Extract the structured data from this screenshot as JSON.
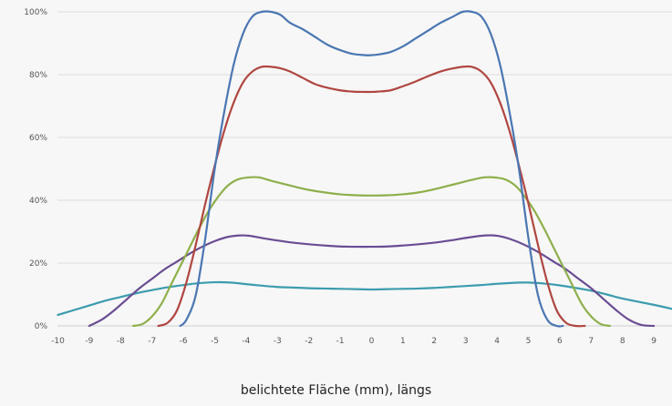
{
  "chart_data": {
    "type": "line",
    "title": "",
    "xlabel": "belichtete Fläche (mm), längs",
    "ylabel": "",
    "xlim": [
      -10,
      9.8
    ],
    "ylim": [
      0,
      100
    ],
    "x_ticks": [
      "-10",
      "-9",
      "-8",
      "-7",
      "-6",
      "-5",
      "-4",
      "-3",
      "-2",
      "-1",
      "0",
      "1",
      "2",
      "3",
      "4",
      "5",
      "6",
      "7",
      "8",
      "9"
    ],
    "y_ticks": [
      "0%",
      "20%",
      "40%",
      "60%",
      "80%",
      "100%"
    ],
    "grid": "horizontal",
    "legend": "none",
    "series": [
      {
        "color": "#4a76b2",
        "x": [
          -6.1,
          -5.9,
          -5.6,
          -5.3,
          -5.0,
          -4.7,
          -4.4,
          -4.1,
          -3.8,
          -3.5,
          -3.2,
          -2.9,
          -2.6,
          -2.2,
          -1.8,
          -1.4,
          -1.0,
          -0.6,
          -0.2,
          0.0,
          0.2,
          0.6,
          1.0,
          1.4,
          1.8,
          2.2,
          2.6,
          2.9,
          3.2,
          3.5,
          3.8,
          4.1,
          4.4,
          4.7,
          5.0,
          5.3,
          5.6,
          5.9,
          6.1
        ],
        "y": [
          0,
          2,
          10,
          28,
          50,
          68,
          83,
          93,
          98.5,
          100,
          100,
          99,
          96.5,
          94.5,
          92,
          89.5,
          87.8,
          86.6,
          86.2,
          86.2,
          86.4,
          87.2,
          89,
          91.5,
          94,
          96.5,
          98.5,
          100,
          100,
          98.5,
          93,
          83,
          68,
          50,
          28,
          10,
          2,
          0,
          0
        ]
      },
      {
        "color": "#b04641",
        "x": [
          -6.8,
          -6.5,
          -6.2,
          -5.9,
          -5.6,
          -5.3,
          -5.0,
          -4.7,
          -4.4,
          -4.1,
          -3.8,
          -3.5,
          -3.2,
          -2.9,
          -2.6,
          -2.2,
          -1.8,
          -1.4,
          -1.0,
          -0.6,
          -0.2,
          0.0,
          0.2,
          0.6,
          1.0,
          1.4,
          1.8,
          2.2,
          2.6,
          2.9,
          3.2,
          3.5,
          3.8,
          4.1,
          4.4,
          4.7,
          5.0,
          5.3,
          5.6,
          5.9,
          6.2,
          6.5,
          6.8
        ],
        "y": [
          0,
          1,
          5,
          14,
          26,
          39,
          51,
          62,
          71,
          77.5,
          81,
          82.5,
          82.5,
          82,
          81,
          79,
          77,
          75.8,
          75,
          74.6,
          74.5,
          74.5,
          74.6,
          75,
          76.3,
          77.8,
          79.5,
          81,
          82,
          82.5,
          82.5,
          81,
          77.5,
          71,
          62,
          51,
          39,
          26,
          14,
          5,
          1,
          0,
          0
        ]
      },
      {
        "color": "#8eaf4c",
        "x": [
          -7.6,
          -7.3,
          -7.0,
          -6.7,
          -6.4,
          -6.1,
          -5.8,
          -5.5,
          -5.2,
          -4.9,
          -4.6,
          -4.3,
          -4.0,
          -3.6,
          -3.2,
          -2.8,
          -2.4,
          -2.0,
          -1.5,
          -1.0,
          -0.5,
          0.0,
          0.5,
          1.0,
          1.5,
          2.0,
          2.4,
          2.8,
          3.2,
          3.6,
          4.0,
          4.3,
          4.6,
          4.9,
          5.2,
          5.5,
          5.8,
          6.1,
          6.4,
          6.7,
          7.0,
          7.3,
          7.6
        ],
        "y": [
          0,
          0.6,
          3,
          7,
          13,
          19,
          25,
          31,
          36.5,
          41,
          44.5,
          46.5,
          47.2,
          47.3,
          46.2,
          45.2,
          44.2,
          43.3,
          42.5,
          41.9,
          41.6,
          41.5,
          41.6,
          41.9,
          42.5,
          43.5,
          44.5,
          45.5,
          46.5,
          47.3,
          47.2,
          46.5,
          44.5,
          41,
          36.5,
          31,
          25,
          19,
          13,
          7,
          3,
          0.6,
          0
        ]
      },
      {
        "color": "#6a4d93",
        "x": [
          -9.0,
          -8.6,
          -8.2,
          -7.8,
          -7.4,
          -7.0,
          -6.6,
          -6.2,
          -5.8,
          -5.4,
          -5.0,
          -4.6,
          -4.2,
          -3.9,
          -3.5,
          -3.0,
          -2.5,
          -2.0,
          -1.5,
          -1.0,
          -0.5,
          0.0,
          0.5,
          1.0,
          1.5,
          2.0,
          2.5,
          3.0,
          3.5,
          3.9,
          4.2,
          4.6,
          5.0,
          5.4,
          5.8,
          6.2,
          6.6,
          7.0,
          7.4,
          7.8,
          8.2,
          8.6,
          9.0
        ],
        "y": [
          0,
          2,
          5,
          8.5,
          12,
          15,
          18,
          20.5,
          23,
          25.2,
          27,
          28.3,
          28.8,
          28.7,
          28,
          27.2,
          26.5,
          26,
          25.6,
          25.3,
          25.2,
          25.2,
          25.3,
          25.6,
          26,
          26.5,
          27.2,
          28,
          28.7,
          28.8,
          28.3,
          27,
          25.2,
          23,
          20.5,
          18,
          15,
          12,
          8.5,
          5,
          2,
          0.3,
          0
        ]
      },
      {
        "color": "#3c9cae",
        "x": [
          -10.0,
          -9.5,
          -9.0,
          -8.5,
          -8.0,
          -7.5,
          -7.0,
          -6.5,
          -6.0,
          -5.5,
          -5.0,
          -4.5,
          -4.0,
          -3.5,
          -3.0,
          -2.5,
          -2.0,
          -1.5,
          -1.0,
          -0.5,
          0.0,
          0.5,
          1.0,
          1.5,
          2.0,
          2.5,
          3.0,
          3.5,
          4.0,
          4.5,
          4.8,
          5.0,
          5.5,
          6.0,
          6.5,
          7.0,
          7.5,
          8.0,
          8.5,
          9.0,
          9.5,
          9.8
        ],
        "y": [
          3.5,
          5,
          6.5,
          8,
          9.2,
          10.4,
          11.4,
          12.3,
          13,
          13.6,
          13.9,
          13.8,
          13.3,
          12.8,
          12.4,
          12.2,
          12,
          11.9,
          11.8,
          11.7,
          11.6,
          11.7,
          11.8,
          11.9,
          12.1,
          12.4,
          12.7,
          13,
          13.4,
          13.7,
          13.8,
          13.8,
          13.5,
          12.9,
          12.1,
          11.2,
          10,
          8.7,
          7.7,
          6.7,
          5.6,
          4.8
        ]
      }
    ]
  }
}
